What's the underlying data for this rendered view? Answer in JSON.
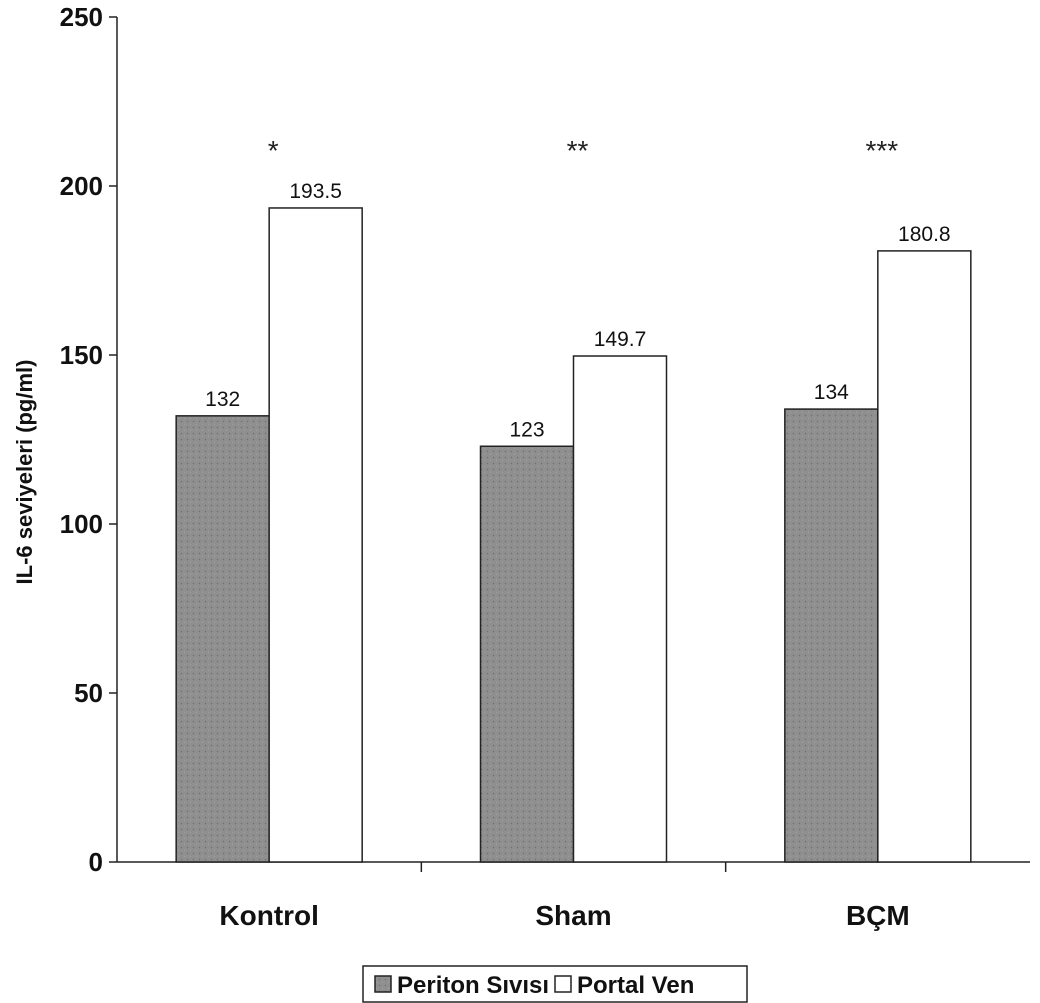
{
  "chart_data": {
    "type": "bar",
    "categories": [
      "Kontrol",
      "Sham",
      "BÇM"
    ],
    "series": [
      {
        "name": "Periton Sıvısı",
        "values": [
          132,
          123,
          134
        ],
        "color": "#8f8f8f"
      },
      {
        "name": "Portal Ven",
        "values": [
          193.5,
          149.7,
          180.8
        ],
        "color": "#ffffff"
      }
    ],
    "data_labels": [
      [
        "132",
        "123",
        "134"
      ],
      [
        "193.5",
        "149.7",
        "180.8"
      ]
    ],
    "annotations": [
      "*",
      "**",
      "***"
    ],
    "ylabel": "IL-6 seviyeleri (pg/ml)",
    "xlabel": "",
    "ylim": [
      0,
      250
    ],
    "yticks": [
      "0",
      "50",
      "100",
      "150",
      "200",
      "250"
    ],
    "grid": false,
    "legend_position": "bottom"
  }
}
